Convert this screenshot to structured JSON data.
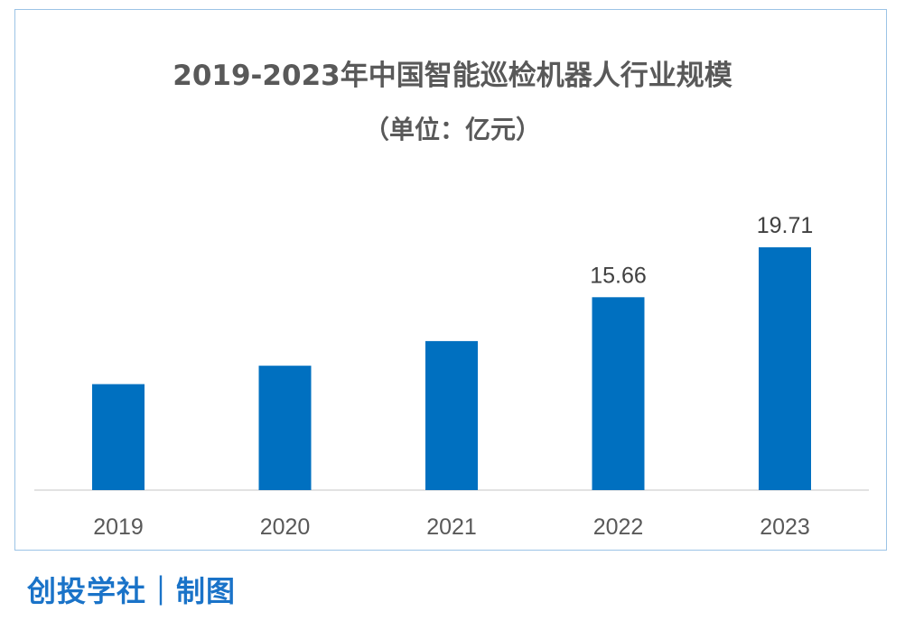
{
  "chart_data": {
    "type": "bar",
    "title": "2019-2023年中国智能巡检机器人行业规模",
    "subtitle": "（单位：亿元）",
    "categories": [
      "2019",
      "2020",
      "2021",
      "2022",
      "2023"
    ],
    "values": [
      8.6,
      10.1,
      12.1,
      15.66,
      19.71
    ],
    "data_labels": [
      "",
      "",
      "",
      "15.66",
      "19.71"
    ],
    "xlabel": "",
    "ylabel": "",
    "ylim": [
      0,
      22
    ],
    "grid": false,
    "legend": "none",
    "bar_color": "#0070c0",
    "axis_color": "#d9d9d9"
  },
  "footer": {
    "credit": "创投学社｜制图"
  },
  "colors": {
    "frame_border": "#9cc3e6",
    "title_text": "#595959",
    "tick_text": "#595959",
    "label_text": "#404040",
    "credit_text": "#1a73c8"
  }
}
